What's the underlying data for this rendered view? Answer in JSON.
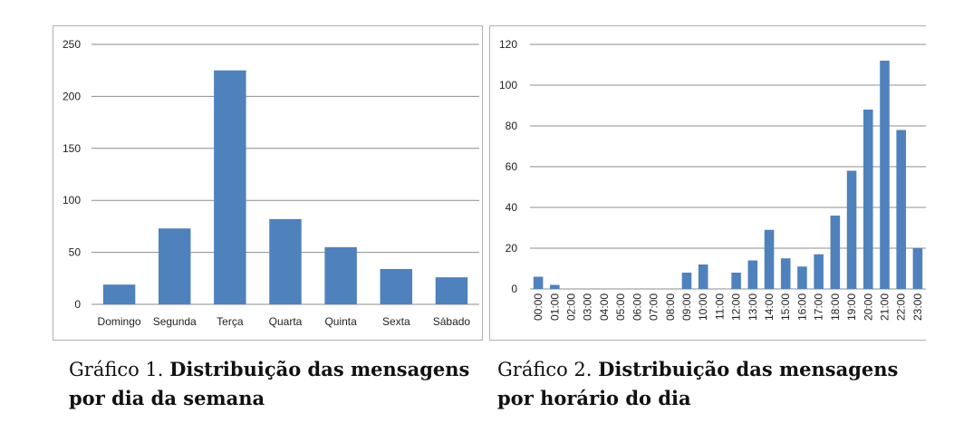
{
  "chart_data": [
    {
      "type": "bar",
      "categories": [
        "Domingo",
        "Segunda",
        "Terça",
        "Quarta",
        "Quinta",
        "Sexta",
        "Sábado"
      ],
      "values": [
        19,
        73,
        225,
        82,
        55,
        34,
        26
      ],
      "ylim": [
        0,
        250
      ],
      "yticks": [
        0,
        50,
        100,
        150,
        200,
        250
      ],
      "grid": true,
      "color": "#4f81bd"
    },
    {
      "type": "bar",
      "categories": [
        "00:00",
        "01:00",
        "02:00",
        "03:00",
        "04:00",
        "05:00",
        "06:00",
        "07:00",
        "08:00",
        "09:00",
        "10:00",
        "11:00",
        "12:00",
        "13:00",
        "14:00",
        "15:00",
        "16:00",
        "17:00",
        "18:00",
        "19:00",
        "20:00",
        "21:00",
        "22:00",
        "23:00"
      ],
      "values": [
        6,
        2,
        0,
        0,
        0,
        0,
        0,
        0,
        0,
        8,
        12,
        0,
        8,
        14,
        29,
        15,
        11,
        17,
        36,
        58,
        88,
        112,
        78,
        20
      ],
      "ylim": [
        0,
        120
      ],
      "yticks": [
        0,
        20,
        40,
        60,
        80,
        100,
        120
      ],
      "grid": true,
      "color": "#4f81bd"
    }
  ],
  "captions": [
    {
      "prefix": "Gráfico 1. ",
      "title_line1": "Distribuição das mensagens",
      "title_line2": "por dia da semana"
    },
    {
      "prefix": "Gráfico 2. ",
      "title_line1": "Distribuição das mensagens",
      "title_line2": "por horário do dia"
    }
  ]
}
